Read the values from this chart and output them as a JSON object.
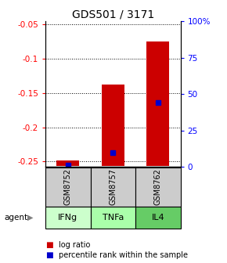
{
  "title": "GDS501 / 3171",
  "categories": [
    "GSM8752",
    "GSM8757",
    "GSM8762"
  ],
  "agents": [
    "IFNg",
    "TNFa",
    "IL4"
  ],
  "log_ratios": [
    -0.248,
    -0.138,
    -0.075
  ],
  "baseline": -0.257,
  "percentile_ranks": [
    1.0,
    10.0,
    44.0
  ],
  "ylim_left": [
    -0.258,
    -0.045
  ],
  "ylim_right": [
    0,
    100
  ],
  "left_ticks": [
    -0.25,
    -0.2,
    -0.15,
    -0.1,
    -0.05
  ],
  "right_ticks": [
    0,
    25,
    50,
    75,
    100
  ],
  "left_tick_labels": [
    "-0.25",
    "-0.2",
    "-0.15",
    "-0.1",
    "-0.05"
  ],
  "right_tick_labels": [
    "0",
    "25",
    "50",
    "75",
    "100%"
  ],
  "bar_color": "#cc0000",
  "dot_color": "#0000cc",
  "sample_box_color": "#cccccc",
  "agent_box_colors": [
    "#ccffcc",
    "#aaffaa",
    "#66cc66"
  ],
  "figsize": [
    2.9,
    3.36
  ],
  "dpi": 100
}
